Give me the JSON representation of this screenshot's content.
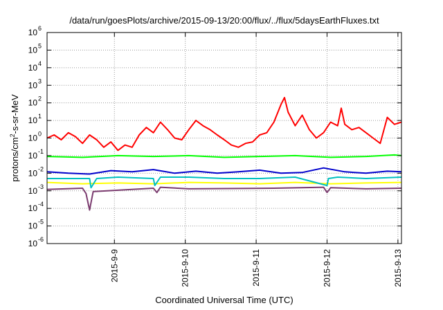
{
  "chart_data": {
    "type": "line",
    "title": "/data/run/goesPlots/archive/2015-09-13/20:00/flux/../flux/5daysEarthFluxes.txt",
    "xlabel": "Coordinated Universal Time (UTC)",
    "ylabel_base": "protons/cm",
    "ylabel_exp": "2",
    "ylabel_rest": "-s-sr-MeV",
    "y_scale": "log",
    "ylim": [
      1e-06,
      1000000
    ],
    "y_ticks": [
      {
        "value": 1e-06,
        "base": "10",
        "exp": "-6"
      },
      {
        "value": 1e-05,
        "base": "10",
        "exp": "-5"
      },
      {
        "value": 0.0001,
        "base": "10",
        "exp": "-4"
      },
      {
        "value": 0.001,
        "base": "10",
        "exp": "-3"
      },
      {
        "value": 0.01,
        "base": "10",
        "exp": "-2"
      },
      {
        "value": 0.1,
        "base": "10",
        "exp": "-1"
      },
      {
        "value": 1,
        "base": "10",
        "exp": "0"
      },
      {
        "value": 10,
        "base": "10",
        "exp": "1"
      },
      {
        "value": 100,
        "base": "10",
        "exp": "2"
      },
      {
        "value": 1000,
        "base": "10",
        "exp": "3"
      },
      {
        "value": 10000,
        "base": "10",
        "exp": "4"
      },
      {
        "value": 100000,
        "base": "10",
        "exp": "5"
      },
      {
        "value": 1000000,
        "base": "10",
        "exp": "6"
      }
    ],
    "xlim_days": [
      0,
      5
    ],
    "x_ticks": [
      {
        "day": 0.95,
        "label": "2015-9-9"
      },
      {
        "day": 1.95,
        "label": "2015-9-10"
      },
      {
        "day": 2.95,
        "label": "2015-9-11"
      },
      {
        "day": 3.95,
        "label": "2015-9-12"
      },
      {
        "day": 4.95,
        "label": "2015-9-13"
      }
    ],
    "grid": true,
    "series": [
      {
        "color": "#7a3a6e",
        "x": [
          0,
          0.5,
          0.55,
          0.6,
          0.65,
          1.5,
          1.55,
          1.6,
          2,
          3.2,
          3.9,
          3.95,
          4.0,
          4.5,
          5
        ],
        "y": [
          0.0012,
          0.0014,
          0.0007,
          8e-05,
          0.0009,
          0.0014,
          0.0008,
          0.0016,
          0.0013,
          0.0014,
          0.0016,
          0.0008,
          0.0015,
          0.0013,
          0.0014
        ]
      },
      {
        "color": "#ffff00",
        "x": [
          0,
          0.5,
          1,
          1.5,
          2,
          2.5,
          3,
          3.5,
          4,
          4.5,
          5
        ],
        "y": [
          0.003,
          0.0025,
          0.0028,
          0.0025,
          0.003,
          0.0028,
          0.0025,
          0.003,
          0.0025,
          0.0028,
          0.003
        ]
      },
      {
        "color": "#00c0c0",
        "x": [
          0,
          0.6,
          0.62,
          0.7,
          1,
          1.5,
          1.52,
          1.6,
          2,
          2.5,
          3,
          3.5,
          3.95,
          3.97,
          4.1,
          4.5,
          5
        ],
        "y": [
          0.005,
          0.005,
          0.0015,
          0.005,
          0.006,
          0.005,
          0.002,
          0.006,
          0.006,
          0.005,
          0.005,
          0.006,
          0.002,
          0.005,
          0.006,
          0.005,
          0.006
        ]
      },
      {
        "color": "#0000cc",
        "x": [
          0,
          0.3,
          0.6,
          0.9,
          1.2,
          1.5,
          1.8,
          2.1,
          2.4,
          2.7,
          3.0,
          3.3,
          3.6,
          3.9,
          4.2,
          4.5,
          4.8,
          5
        ],
        "y": [
          0.012,
          0.01,
          0.009,
          0.014,
          0.012,
          0.016,
          0.01,
          0.013,
          0.01,
          0.012,
          0.015,
          0.01,
          0.011,
          0.02,
          0.012,
          0.01,
          0.013,
          0.012
        ]
      },
      {
        "color": "#00ff00",
        "x": [
          0,
          0.5,
          1,
          1.5,
          2,
          2.5,
          3,
          3.5,
          4,
          4.5,
          4.9,
          5
        ],
        "y": [
          0.09,
          0.08,
          0.1,
          0.09,
          0.1,
          0.08,
          0.09,
          0.1,
          0.08,
          0.09,
          0.11,
          0.1
        ]
      },
      {
        "color": "#ff0000",
        "x": [
          0,
          0.1,
          0.2,
          0.3,
          0.4,
          0.5,
          0.6,
          0.7,
          0.8,
          0.9,
          1.0,
          1.1,
          1.2,
          1.3,
          1.4,
          1.5,
          1.6,
          1.7,
          1.8,
          1.9,
          2.0,
          2.1,
          2.2,
          2.3,
          2.4,
          2.5,
          2.6,
          2.7,
          2.8,
          2.9,
          3.0,
          3.1,
          3.2,
          3.3,
          3.35,
          3.4,
          3.5,
          3.6,
          3.7,
          3.8,
          3.9,
          4.0,
          4.1,
          4.15,
          4.2,
          4.3,
          4.4,
          4.5,
          4.6,
          4.7,
          4.8,
          4.9,
          5.0
        ],
        "y": [
          1.0,
          1.5,
          0.8,
          2.0,
          1.2,
          0.5,
          1.5,
          0.8,
          0.3,
          0.6,
          0.2,
          0.4,
          0.3,
          1.5,
          4,
          2,
          8,
          3,
          1,
          0.8,
          3,
          10,
          5,
          3,
          1.5,
          0.8,
          0.4,
          0.3,
          0.5,
          0.6,
          1.5,
          2,
          8,
          80,
          200,
          30,
          5,
          20,
          3,
          1,
          2,
          8,
          5,
          50,
          6,
          3,
          4,
          2,
          1,
          0.5,
          15,
          6,
          8
        ]
      }
    ]
  }
}
